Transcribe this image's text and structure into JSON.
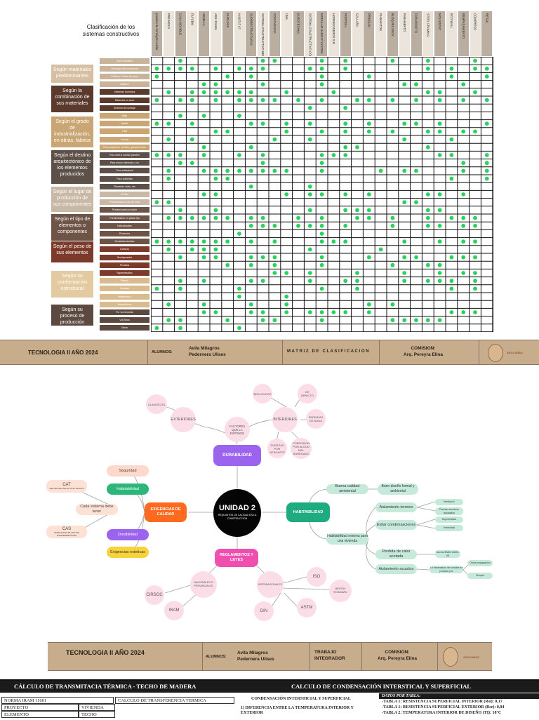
{
  "matrix": {
    "title": "Clasificación de los sistemas constructivos",
    "columns": [
      "paneles de hormigón celular",
      "PRE-MOLD",
      "CASA MOVIBLE",
      "PLYCEM",
      "SEMILLA",
      "ARKI PANEL",
      "DURLOCK",
      "HABITAT 67",
      "SUPERESTRUCTURAS",
      "SISTEMA CONSTRUCTIVO BENBRO",
      "CONVIVENCIA",
      "UMA",
      "EUROTECHNA",
      "SISTEMA CONSTRUCTIVO COMPLEX",
      "MODULAR HABITAT SYSTEM",
      "HORMIGONEROS S.R.",
      "PORTEÑA",
      "GALLARA",
      "PRINDIAN",
      "DIAMANTON",
      "BLOQUES DECK",
      "PARAMENTO",
      "PARAMOLE SI",
      "STEEL FRAMING",
      "MOLDOZUC",
      "ECO WALL",
      "REMPAZAMIENTO",
      "COMPRESO",
      "RETAK"
    ],
    "rows": [
      {
        "label": "Acero aluminio",
        "color": "#c9b39a"
      },
      {
        "label": "Hormigón Monocemento",
        "color": "#c9b39a"
      },
      {
        "label": "Plástico y Placa de yeso",
        "color": "#c9b39a"
      },
      {
        "label": "Madera",
        "color": "#c9b39a"
      },
      {
        "label": "Sistemas húmedos",
        "color": "#5a3a2d"
      },
      {
        "label": "Sistemas en seco",
        "color": "#5a3a2d"
      },
      {
        "label": "Sistema de montaje",
        "color": "#5a3a2d"
      },
      {
        "label": "Baja",
        "color": "#c9a673"
      },
      {
        "label": "Media",
        "color": "#c9a673"
      },
      {
        "label": "Total",
        "color": "#c9a673"
      },
      {
        "label": "Parcial",
        "color": "#c9a673"
      },
      {
        "label": "Para pequeños, medios, grandes luces",
        "color": "#c9a673"
      },
      {
        "label": "Para obra a suelta/ paneles",
        "color": "#5c5048"
      },
      {
        "label": "Para muros interiores o no",
        "color": "#5c5048"
      },
      {
        "label": "Para entrepisos",
        "color": "#5c5048"
      },
      {
        "label": "Para cubiertas",
        "color": "#5c5048"
      },
      {
        "label": "Elemento mixto, etc",
        "color": "#5c5048"
      },
      {
        "label": "In Situ",
        "color": "#c9b8a6"
      },
      {
        "label": "Prefabricados a pie de obra",
        "color": "#c9b8a6"
      },
      {
        "label": "Prefabricados en taller",
        "color": "#6e5347"
      },
      {
        "label": "Prefabricados en planta fija",
        "color": "#6e5347"
      },
      {
        "label": "Estructurales",
        "color": "#6e5347"
      },
      {
        "label": "Divisorios",
        "color": "#6e5347"
      },
      {
        "label": "Semiestructurales",
        "color": "#6e5347"
      },
      {
        "label": "Livianos",
        "color": "#7c3a2a"
      },
      {
        "label": "Semipesados",
        "color": "#7c3a2a"
      },
      {
        "label": "Pesados",
        "color": "#7c3a2a"
      },
      {
        "label": "Superpesados",
        "color": "#7c3a2a"
      },
      {
        "label": "Planos",
        "color": "#d9bc8e"
      },
      {
        "label": "Lineales",
        "color": "#d9bc8e"
      },
      {
        "label": "Reticulados",
        "color": "#d9bc8e"
      },
      {
        "label": "Volumétricos",
        "color": "#d9bc8e"
      },
      {
        "label": "Por vía húmeda",
        "color": "#5c4a40"
      },
      {
        "label": "Vía Seca",
        "color": "#5c4a40"
      },
      {
        "label": "Mixta",
        "color": "#5c4a40"
      }
    ],
    "categories": [
      {
        "label": "Según materiales predominantes",
        "color": "#d7bfa3"
      },
      {
        "label": "Según la combinación de sus materiales",
        "color": "#5a3a2d"
      },
      {
        "label": "Según el grado de industrialización, en obras, fabrica",
        "color": "#c9a673"
      },
      {
        "label": "Según el destino arquitectónico de los elementos producidos",
        "color": "#5c5048"
      },
      {
        "label": "Según el lugar de producción de sus componentes",
        "color": "#c9b8a6"
      },
      {
        "label": "Según el tipo de elementos o componentes",
        "color": "#6e5347"
      },
      {
        "label": "Según el peso de sus elementos",
        "color": "#7c3a2a"
      },
      {
        "label": "Según su conformación estructural",
        "color": "#e3caa0"
      },
      {
        "label": "Según su proceso de producción",
        "color": "#5c4a40"
      }
    ],
    "dots": [
      [
        0,
        2
      ],
      [
        0,
        9
      ],
      [
        0,
        10
      ],
      [
        0,
        14
      ],
      [
        0,
        16
      ],
      [
        0,
        20
      ],
      [
        0,
        23
      ],
      [
        0,
        27
      ],
      [
        1,
        0
      ],
      [
        1,
        1
      ],
      [
        1,
        2
      ],
      [
        1,
        3
      ],
      [
        1,
        5
      ],
      [
        1,
        7
      ],
      [
        1,
        8
      ],
      [
        1,
        9
      ],
      [
        1,
        13
      ],
      [
        1,
        14
      ],
      [
        1,
        16
      ],
      [
        1,
        23
      ],
      [
        1,
        25
      ],
      [
        1,
        27
      ],
      [
        1,
        28
      ],
      [
        2,
        0
      ],
      [
        2,
        6
      ],
      [
        2,
        8
      ],
      [
        2,
        14
      ],
      [
        2,
        18
      ],
      [
        2,
        25
      ],
      [
        2,
        28
      ],
      [
        3,
        4
      ],
      [
        3,
        5
      ],
      [
        3,
        9
      ],
      [
        3,
        14
      ],
      [
        3,
        21
      ],
      [
        3,
        22
      ],
      [
        3,
        26
      ],
      [
        4,
        1
      ],
      [
        4,
        3
      ],
      [
        4,
        4
      ],
      [
        4,
        5
      ],
      [
        4,
        6
      ],
      [
        4,
        7
      ],
      [
        4,
        8
      ],
      [
        4,
        11
      ],
      [
        4,
        15
      ],
      [
        4,
        23
      ],
      [
        4,
        24
      ],
      [
        4,
        27
      ],
      [
        5,
        0
      ],
      [
        5,
        2
      ],
      [
        5,
        3
      ],
      [
        5,
        5
      ],
      [
        5,
        7
      ],
      [
        5,
        8
      ],
      [
        5,
        9
      ],
      [
        5,
        10
      ],
      [
        5,
        12
      ],
      [
        5,
        14
      ],
      [
        5,
        17
      ],
      [
        5,
        18
      ],
      [
        5,
        20
      ],
      [
        5,
        22
      ],
      [
        5,
        24
      ],
      [
        5,
        26
      ],
      [
        5,
        28
      ],
      [
        6,
        13
      ],
      [
        6,
        16
      ],
      [
        7,
        2
      ],
      [
        7,
        4
      ],
      [
        7,
        7
      ],
      [
        8,
        0
      ],
      [
        8,
        1
      ],
      [
        8,
        3
      ],
      [
        8,
        8
      ],
      [
        8,
        9
      ],
      [
        8,
        11
      ],
      [
        8,
        13
      ],
      [
        8,
        16
      ],
      [
        8,
        18
      ],
      [
        8,
        21
      ],
      [
        8,
        22
      ],
      [
        8,
        24
      ],
      [
        8,
        28
      ],
      [
        9,
        5
      ],
      [
        9,
        6
      ],
      [
        9,
        11
      ],
      [
        9,
        14
      ],
      [
        9,
        16
      ],
      [
        9,
        18
      ],
      [
        9,
        20
      ],
      [
        9,
        23
      ],
      [
        9,
        24
      ],
      [
        9,
        26
      ],
      [
        9,
        27
      ],
      [
        10,
        1
      ],
      [
        10,
        3
      ],
      [
        10,
        10
      ],
      [
        10,
        13
      ],
      [
        10,
        21
      ],
      [
        10,
        25
      ],
      [
        11,
        4
      ],
      [
        11,
        8
      ],
      [
        11,
        16
      ],
      [
        11,
        17
      ],
      [
        11,
        23
      ],
      [
        12,
        0
      ],
      [
        12,
        1
      ],
      [
        12,
        2
      ],
      [
        12,
        4
      ],
      [
        12,
        7
      ],
      [
        12,
        9
      ],
      [
        12,
        14
      ],
      [
        12,
        15
      ],
      [
        12,
        16
      ],
      [
        12,
        24
      ],
      [
        12,
        25
      ],
      [
        12,
        28
      ],
      [
        13,
        2
      ],
      [
        13,
        3
      ],
      [
        13,
        9
      ],
      [
        13,
        14
      ],
      [
        13,
        26
      ],
      [
        13,
        28
      ],
      [
        14,
        1
      ],
      [
        14,
        4
      ],
      [
        14,
        5
      ],
      [
        14,
        6
      ],
      [
        14,
        7
      ],
      [
        14,
        8
      ],
      [
        14,
        9
      ],
      [
        14,
        10
      ],
      [
        14,
        11
      ],
      [
        14,
        14
      ],
      [
        14,
        19
      ],
      [
        14,
        21
      ],
      [
        14,
        22
      ],
      [
        14,
        26
      ],
      [
        14,
        28
      ],
      [
        15,
        1
      ],
      [
        15,
        5
      ],
      [
        15,
        6
      ],
      [
        15,
        25
      ],
      [
        15,
        28
      ],
      [
        16,
        8
      ],
      [
        16,
        13
      ],
      [
        17,
        4
      ],
      [
        17,
        5
      ],
      [
        17,
        11
      ],
      [
        17,
        13
      ],
      [
        17,
        14
      ],
      [
        17,
        16
      ],
      [
        17,
        18
      ],
      [
        17,
        23
      ],
      [
        17,
        24
      ],
      [
        17,
        26
      ],
      [
        18,
        0
      ],
      [
        18,
        1
      ],
      [
        18,
        21
      ],
      [
        18,
        22
      ],
      [
        19,
        2
      ],
      [
        19,
        5
      ],
      [
        19,
        13
      ],
      [
        19,
        16
      ],
      [
        19,
        17
      ],
      [
        19,
        18
      ],
      [
        19,
        23
      ],
      [
        19,
        24
      ],
      [
        20,
        1
      ],
      [
        20,
        2
      ],
      [
        20,
        3
      ],
      [
        20,
        4
      ],
      [
        20,
        5
      ],
      [
        20,
        6
      ],
      [
        20,
        8
      ],
      [
        20,
        9
      ],
      [
        20,
        12
      ],
      [
        20,
        14
      ],
      [
        20,
        17
      ],
      [
        20,
        18
      ],
      [
        20,
        20
      ],
      [
        20,
        23
      ],
      [
        20,
        25
      ],
      [
        20,
        26
      ],
      [
        20,
        27
      ],
      [
        21,
        8
      ],
      [
        21,
        9
      ],
      [
        21,
        10
      ],
      [
        21,
        12
      ],
      [
        21,
        13
      ],
      [
        21,
        14
      ],
      [
        21,
        16
      ],
      [
        21,
        20
      ],
      [
        21,
        23
      ],
      [
        21,
        24
      ],
      [
        21,
        26
      ],
      [
        21,
        27
      ],
      [
        22,
        7
      ],
      [
        22,
        14
      ],
      [
        23,
        0
      ],
      [
        23,
        1
      ],
      [
        23,
        2
      ],
      [
        23,
        3
      ],
      [
        23,
        4
      ],
      [
        23,
        5
      ],
      [
        23,
        6
      ],
      [
        23,
        8
      ],
      [
        23,
        10
      ],
      [
        23,
        14
      ],
      [
        23,
        15
      ],
      [
        23,
        16
      ],
      [
        23,
        21
      ],
      [
        23,
        24
      ],
      [
        23,
        26
      ],
      [
        23,
        27
      ],
      [
        24,
        1
      ],
      [
        24,
        3
      ],
      [
        24,
        4
      ],
      [
        24,
        5
      ],
      [
        24,
        13
      ],
      [
        24,
        19
      ],
      [
        25,
        2
      ],
      [
        25,
        4
      ],
      [
        25,
        5
      ],
      [
        25,
        8
      ],
      [
        25,
        9
      ],
      [
        25,
        10
      ],
      [
        25,
        14
      ],
      [
        25,
        18
      ],
      [
        25,
        21
      ],
      [
        25,
        22
      ],
      [
        25,
        25
      ],
      [
        25,
        26
      ],
      [
        25,
        27
      ],
      [
        26,
        6
      ],
      [
        26,
        8
      ],
      [
        26,
        10
      ],
      [
        26,
        14
      ],
      [
        26,
        20
      ],
      [
        26,
        23
      ],
      [
        26,
        24
      ],
      [
        27,
        10
      ],
      [
        27,
        11
      ],
      [
        27,
        13
      ],
      [
        27,
        17
      ],
      [
        27,
        21
      ],
      [
        27,
        24
      ],
      [
        27,
        26
      ],
      [
        27,
        27
      ],
      [
        28,
        2
      ],
      [
        28,
        4
      ],
      [
        28,
        8
      ],
      [
        28,
        9
      ],
      [
        28,
        13
      ],
      [
        28,
        16
      ],
      [
        28,
        17
      ],
      [
        28,
        21
      ],
      [
        28,
        23
      ],
      [
        28,
        24
      ],
      [
        28,
        25
      ],
      [
        28,
        27
      ],
      [
        29,
        0
      ],
      [
        29,
        2
      ],
      [
        29,
        7
      ],
      [
        29,
        14
      ],
      [
        29,
        17
      ],
      [
        29,
        25
      ],
      [
        29,
        27
      ],
      [
        30,
        7
      ],
      [
        30,
        11
      ],
      [
        31,
        1
      ],
      [
        31,
        4
      ],
      [
        31,
        8
      ],
      [
        31,
        11
      ],
      [
        31,
        18
      ],
      [
        31,
        20
      ],
      [
        32,
        4
      ],
      [
        32,
        5
      ],
      [
        32,
        8
      ],
      [
        32,
        9
      ],
      [
        32,
        11
      ],
      [
        32,
        13
      ],
      [
        32,
        14
      ],
      [
        32,
        15
      ],
      [
        32,
        16
      ],
      [
        32,
        18
      ],
      [
        32,
        25
      ],
      [
        32,
        26
      ],
      [
        32,
        27
      ],
      [
        33,
        1
      ],
      [
        33,
        2
      ],
      [
        33,
        6
      ],
      [
        33,
        9
      ],
      [
        33,
        10
      ],
      [
        33,
        14
      ],
      [
        33,
        20
      ],
      [
        33,
        21
      ],
      [
        33,
        22
      ],
      [
        33,
        23
      ],
      [
        33,
        24
      ],
      [
        34,
        0
      ],
      [
        34,
        2
      ],
      [
        34,
        7
      ]
    ]
  },
  "footer1": {
    "course": "TECNOLOGIA II AÑO 2024",
    "alumnos_label": "ALUMNOS:",
    "names": "Avila Milagros\nPedernera Ulises",
    "subject": "M A T R I Z   D E   C L A S I F I C A C I O N",
    "comision": "COMISION:\nArq. Pereyra Elina",
    "logo": "APUCAÑAS"
  },
  "mindmap": {
    "center_title": "UNIDAD 2",
    "center_sub": "REQUISITOS DE CALIDAD EN LA CONSTRUCCION",
    "durabilidad": "DURABILIDAD",
    "factores": "FACTORES QUE LA EXPONEN",
    "exteriores": "EXTERIORES",
    "interiores": "INTERIORES",
    "climaticos": "CLIMATICOS",
    "biologicos": "BIOLOGICOS",
    "de_impacto": "DE IMPACTO",
    "perdidas": "PERDIDAS DE AGUA",
    "corrosion": "CORROSION POR ALGUN MAL AGREGADO",
    "dureza": "DUREZAS POR DESGASTE",
    "exigencias": "EXIGENCIAS DE CALIDAD",
    "seguridad": "Seguridad",
    "habitabilidad_l": "Habitabilidad",
    "durabilidad_l": "Durabilidad",
    "esteticas": "Exigencias esteticas",
    "cada_sistema": "Cada sistema debe tener",
    "cat": "CAT",
    "cat_sub": "CERTIFICADO DE APTITUD TECNICA",
    "cas": "CAS",
    "cas_sub": "CERTIFICADO DE APTITUD SISMORRESISTENTE",
    "habitabilidad": "HABITABILIDAD",
    "buena": "Buena calidad ambiental",
    "buen_diseno": "Buen diseño formal y ambiental",
    "minima": "Habitabilidad minima para una vivienda",
    "aislamiento_t": "Aislamiento termico",
    "verificar": "Verificar K",
    "puentes": "Puentes termicos asociados",
    "evitar": "Evitar condensaciones",
    "superficiales": "Superficiales",
    "intersticial": "Intersticial",
    "perdida_calor": "Perdida de calor acotada",
    "norma": "Norma IRAM 11604-05",
    "aislamiento_a": "Aislamiento acustico",
    "acustico_sub": "La transmision de sonidos se produce por",
    "onda_prop": "Onda propagacion",
    "choque": "Choque",
    "reglamentos": "REGLAMENTOS Y LEYES",
    "nacionales": "NACIONALES O PROVINCIALES",
    "internacionales": "INTERNACIONALES",
    "cirsoc": "CIRSOC",
    "iram": "IRAM",
    "iso": "ISO",
    "british": "BRITISH STANDARD",
    "astm": "ASTM",
    "din": "DIN"
  },
  "footer2": {
    "course": "TECNOLOGIA II AÑO 2024",
    "alumnos_label": "ALUMNOS:",
    "names": "Avila Milagros\nPedernera Ulises",
    "subject": "TRABAJO\nINTEGRADOR",
    "comision": "COMISION:\nArq. Pereyra Elina",
    "logo": "APUCAÑAS"
  },
  "bottom": {
    "left_title": "CÁLCULO DE TRANSMITACIA TÉRMICA - TECHO DE MADERA",
    "right_title": "CALCULO DE CONDENSACIÓN INTERSTICAL Y SUPERFICIAL",
    "norma": "NORMA IRAM 11601",
    "proyecto": "PROYECTO",
    "vivienda": "VIVIENDA",
    "elemento": "ELEMENTO",
    "techo": "TECHO",
    "calculo": "CALCULO DE TRANSFERENCIA TERMICA",
    "condensacion": "CONDENSACIÓN INTERSTICIAL Y SUPERFICIAL",
    "diferencia": "1) DIFERENCIA ENTRE LA TEMPERATURA INTERIOR Y EXTERIOR",
    "datos": "DATOS POR TABLA:",
    "tabla1": "-TABLA 1: RESISTENCIA SUPERFICIAL INTERIOR (Rsi): 0,17",
    "tabla1b": "-TABLA 1: RESISTENCIA SUPERFICIAL EXTERIOR (Rse): 0,04",
    "tabla2": "-TABLA 2: TEMPERATURA INTERIOR DE DISEÑO (TI): 18°C"
  }
}
